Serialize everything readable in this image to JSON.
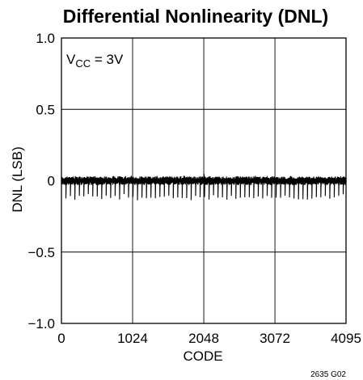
{
  "chart_data": {
    "type": "line",
    "title": "Differential Nonlinearity (DNL)",
    "xlabel": "CODE",
    "ylabel": "DNL (LSB)",
    "xlim": [
      0,
      4095
    ],
    "ylim": [
      -1.0,
      1.0
    ],
    "x_ticks": [
      0,
      1024,
      2048,
      3072,
      4095
    ],
    "x_tick_labels": [
      "0",
      "1024",
      "2048",
      "3072",
      "4095"
    ],
    "y_ticks": [
      1.0,
      0.5,
      0,
      -0.5,
      -1.0
    ],
    "y_tick_labels": [
      "1.0",
      "0.5",
      "0",
      "−0.5",
      "−1.0"
    ],
    "grid": true,
    "annotation": {
      "main": "V",
      "sub": "CC",
      "rest": " = 3V"
    },
    "figure_id": "2635 G02",
    "series": [
      {
        "color": "#000000",
        "trace_upper_typ": 0.03,
        "trace_lower_typ": -0.01,
        "spike_min_typ": -0.13,
        "spike_min_worst": -0.16,
        "spike_max_worst": 0.06,
        "points_x": [
          0,
          64,
          128,
          192,
          256,
          320,
          384,
          448,
          512,
          576,
          640,
          704,
          768,
          832,
          896,
          960,
          1024,
          1088,
          1152,
          1216,
          1280,
          1344,
          1408,
          1472,
          1536,
          1600,
          1664,
          1728,
          1792,
          1856,
          1920,
          1984,
          2048,
          2112,
          2176,
          2240,
          2304,
          2368,
          2432,
          2496,
          2560,
          2624,
          2688,
          2752,
          2816,
          2880,
          2944,
          3008,
          3072,
          3136,
          3200,
          3264,
          3328,
          3392,
          3456,
          3520,
          3584,
          3648,
          3712,
          3776,
          3840,
          3904,
          3968,
          4032,
          4095
        ],
        "points_min": [
          -0.03,
          -0.13,
          -0.12,
          -0.14,
          -0.12,
          -0.13,
          -0.11,
          -0.13,
          -0.12,
          -0.14,
          -0.12,
          -0.13,
          -0.12,
          -0.14,
          -0.11,
          -0.13,
          -0.12,
          -0.14,
          -0.12,
          -0.13,
          -0.12,
          -0.14,
          -0.12,
          -0.13,
          -0.11,
          -0.14,
          -0.12,
          -0.13,
          -0.12,
          -0.14,
          -0.12,
          -0.13,
          -0.12,
          -0.14,
          -0.12,
          -0.13,
          -0.12,
          -0.14,
          -0.12,
          -0.13,
          -0.12,
          -0.14,
          -0.12,
          -0.13,
          -0.12,
          -0.14,
          -0.12,
          -0.13,
          -0.12,
          -0.14,
          -0.12,
          -0.13,
          -0.12,
          -0.14,
          -0.12,
          -0.16,
          -0.12,
          -0.14,
          -0.12,
          -0.13,
          -0.12,
          -0.14,
          -0.12,
          -0.13,
          -0.08
        ],
        "points_max": [
          0.04,
          0.03,
          0.04,
          0.03,
          0.04,
          0.03,
          0.04,
          0.03,
          0.04,
          0.03,
          0.04,
          0.03,
          0.04,
          0.03,
          0.04,
          0.03,
          0.04,
          0.03,
          0.04,
          0.03,
          0.04,
          0.03,
          0.04,
          0.03,
          0.04,
          0.03,
          0.04,
          0.03,
          0.04,
          0.03,
          0.04,
          0.03,
          0.06,
          0.03,
          0.04,
          0.03,
          0.05,
          0.03,
          0.04,
          0.03,
          0.04,
          0.03,
          0.04,
          0.03,
          0.04,
          0.03,
          0.04,
          0.03,
          0.04,
          0.03,
          0.04,
          0.03,
          0.04,
          0.03,
          0.04,
          0.03,
          0.04,
          0.03,
          0.04,
          0.03,
          0.04,
          0.03,
          0.04,
          0.03,
          0.04
        ]
      }
    ]
  }
}
